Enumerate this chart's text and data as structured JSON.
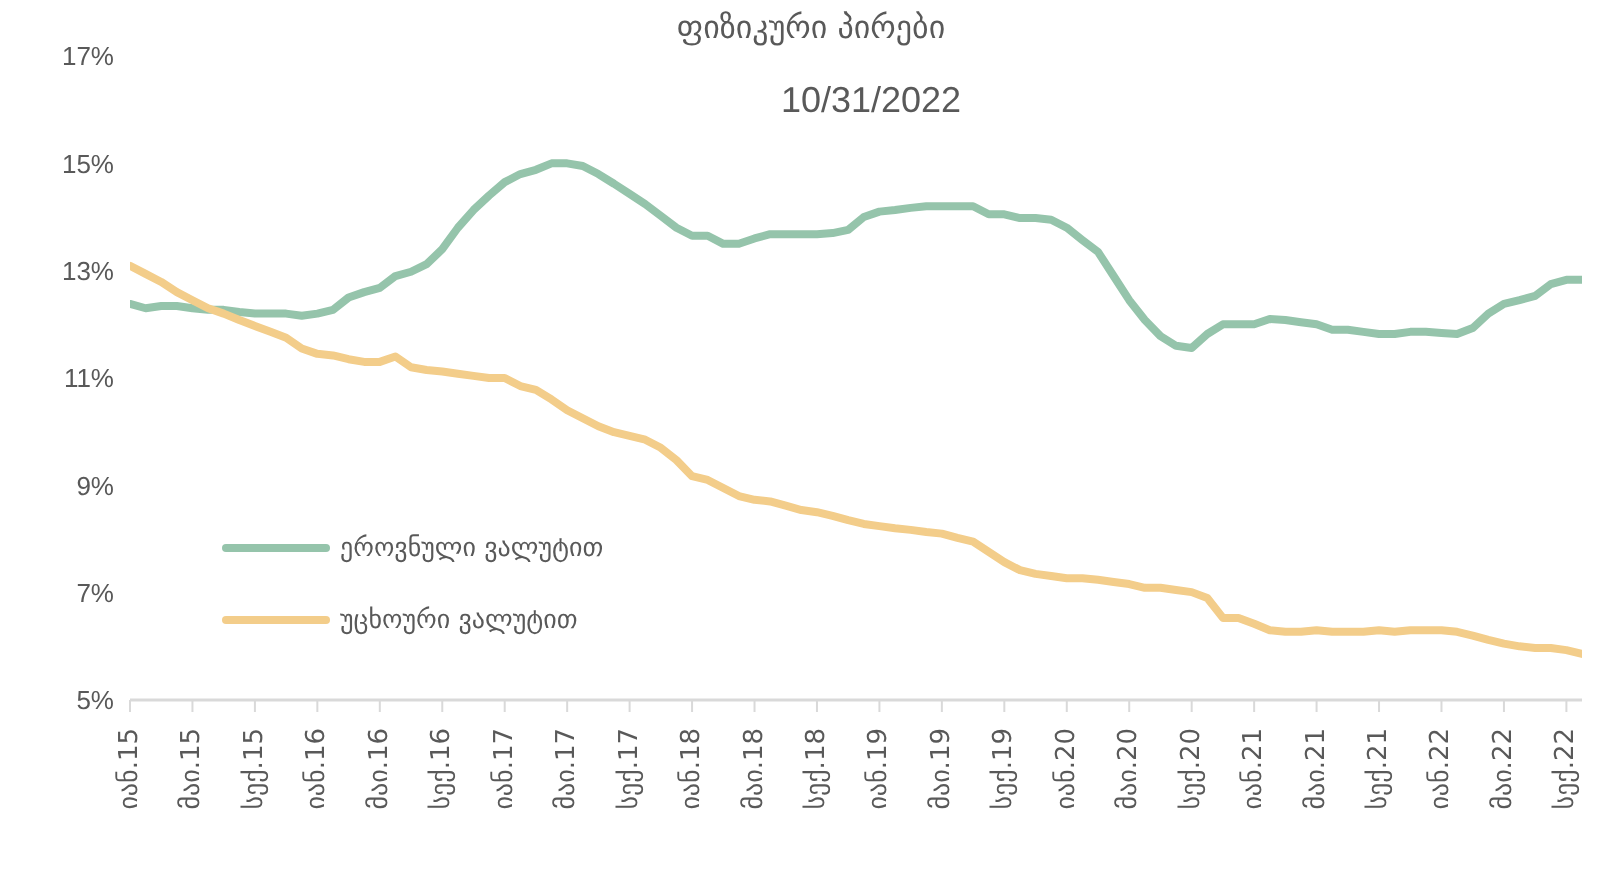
{
  "chart_data": {
    "type": "line",
    "title": "ფიზიკური პირები",
    "subtitle": "10/31/2022",
    "categories": [
      "იან.15",
      null,
      null,
      null,
      "მაი.15",
      null,
      null,
      null,
      "სექ.15",
      null,
      null,
      null,
      "იან.16",
      null,
      null,
      null,
      "მაი.16",
      null,
      null,
      null,
      "სექ.16",
      null,
      null,
      null,
      "იან.17",
      null,
      null,
      null,
      "მაი.17",
      null,
      null,
      null,
      "სექ.17",
      null,
      null,
      null,
      "იან.18",
      null,
      null,
      null,
      "მაი.18",
      null,
      null,
      null,
      "სექ.18",
      null,
      null,
      null,
      "იან.19",
      null,
      null,
      null,
      "მაი.19",
      null,
      null,
      null,
      "სექ.19",
      null,
      null,
      null,
      "იან.20",
      null,
      null,
      null,
      "მაი.20",
      null,
      null,
      null,
      "სექ.20",
      null,
      null,
      null,
      "იან.21",
      null,
      null,
      null,
      "მაი.21",
      null,
      null,
      null,
      "სექ.21",
      null,
      null,
      null,
      "იან.22",
      null,
      null,
      null,
      "მაი.22",
      null,
      null,
      null,
      "სექ.22",
      null
    ],
    "series": [
      {
        "name": "ეროვნული ვალუტით",
        "color": "#95c4ab",
        "values": [
          12.38,
          12.3,
          12.34,
          12.34,
          12.3,
          12.27,
          12.27,
          12.23,
          12.2,
          12.2,
          12.2,
          12.16,
          12.2,
          12.27,
          12.5,
          12.6,
          12.68,
          12.9,
          12.98,
          13.12,
          13.4,
          13.8,
          14.13,
          14.4,
          14.65,
          14.8,
          14.88,
          15.0,
          15.0,
          14.95,
          14.8,
          14.62,
          14.43,
          14.24,
          14.02,
          13.8,
          13.65,
          13.65,
          13.5,
          13.5,
          13.6,
          13.68,
          13.68,
          13.68,
          13.68,
          13.7,
          13.76,
          14.0,
          14.1,
          14.13,
          14.17,
          14.2,
          14.2,
          14.2,
          14.2,
          14.05,
          14.05,
          13.98,
          13.98,
          13.95,
          13.8,
          13.57,
          13.35,
          12.9,
          12.45,
          12.08,
          11.78,
          11.6,
          11.56,
          11.82,
          12.0,
          12.0,
          12.0,
          12.1,
          12.08,
          12.04,
          12.0,
          11.9,
          11.9,
          11.86,
          11.82,
          11.82,
          11.86,
          11.86,
          11.84,
          11.82,
          11.93,
          12.2,
          12.38,
          12.45,
          12.53,
          12.75,
          12.83,
          12.83
        ]
      },
      {
        "name": "უცხოური ვალუტით",
        "color": "#f3cd8a",
        "values": [
          13.09,
          12.94,
          12.79,
          12.6,
          12.45,
          12.3,
          12.2,
          12.08,
          11.97,
          11.86,
          11.75,
          11.55,
          11.45,
          11.42,
          11.35,
          11.3,
          11.3,
          11.4,
          11.2,
          11.15,
          11.12,
          11.08,
          11.04,
          11.0,
          11.0,
          10.85,
          10.78,
          10.6,
          10.4,
          10.25,
          10.1,
          9.99,
          9.92,
          9.85,
          9.7,
          9.47,
          9.17,
          9.1,
          8.95,
          8.8,
          8.73,
          8.7,
          8.62,
          8.54,
          8.5,
          8.43,
          8.35,
          8.28,
          8.24,
          8.2,
          8.17,
          8.13,
          8.1,
          8.02,
          7.95,
          7.76,
          7.57,
          7.42,
          7.35,
          7.31,
          7.27,
          7.27,
          7.24,
          7.2,
          7.16,
          7.09,
          7.09,
          7.05,
          7.01,
          6.9,
          6.53,
          6.53,
          6.42,
          6.3,
          6.27,
          6.27,
          6.3,
          6.27,
          6.27,
          6.27,
          6.3,
          6.27,
          6.3,
          6.3,
          6.3,
          6.27,
          6.2,
          6.12,
          6.05,
          6.0,
          5.97,
          5.97,
          5.93,
          5.86
        ]
      }
    ],
    "ylim": [
      5,
      17
    ],
    "yticks": [
      {
        "value": 5,
        "label": "5%"
      },
      {
        "value": 7,
        "label": "7%"
      },
      {
        "value": 9,
        "label": "9%"
      },
      {
        "value": 11,
        "label": "11%"
      },
      {
        "value": 13,
        "label": "13%"
      },
      {
        "value": 15,
        "label": "15%"
      },
      {
        "value": 17,
        "label": "17%"
      }
    ],
    "grid": false,
    "legend": "bottom left",
    "marker": "none",
    "line_style": "solid"
  }
}
